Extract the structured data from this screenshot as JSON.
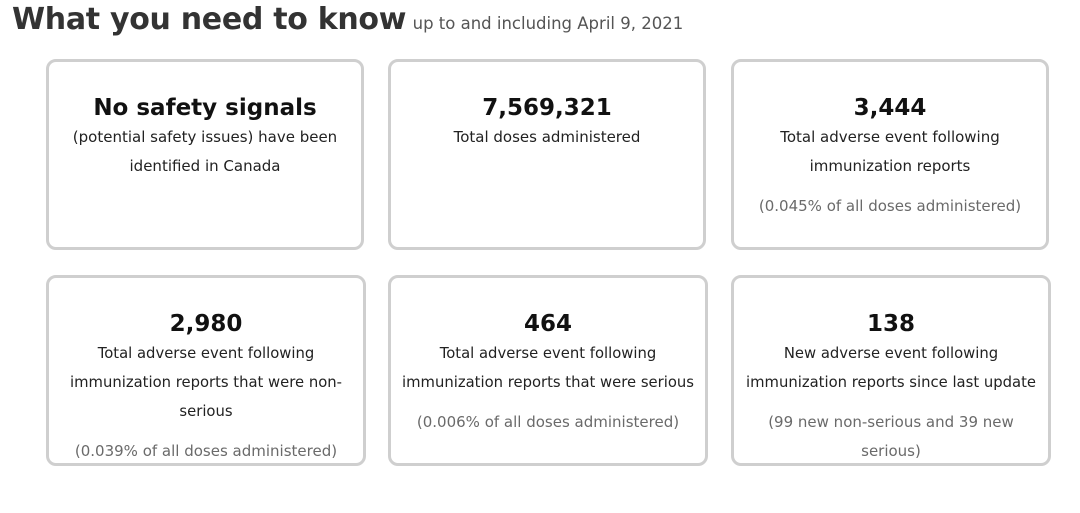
{
  "header": {
    "title": "What you need to know",
    "subtitle": "up to and including April 9, 2021"
  },
  "cards": [
    {
      "headline": "No safety signals",
      "description": "(potential safety issues) have been identified in Canada",
      "note": ""
    },
    {
      "headline": "7,569,321",
      "description": "Total doses administered",
      "note": ""
    },
    {
      "headline": "3,444",
      "description": "Total adverse event following immunization reports",
      "note": "(0.045% of all doses administered)"
    },
    {
      "headline": "2,980",
      "description": "Total adverse event following immunization reports that were non-serious",
      "note": "(0.039% of all doses administered)"
    },
    {
      "headline": "464",
      "description": "Total adverse event following immunization reports that were serious",
      "note": "(0.006% of all doses administered)"
    },
    {
      "headline": "138",
      "description": "New adverse event following immunization reports since last update",
      "note": "(99 new non-serious and 39 new serious)"
    }
  ],
  "colors": {
    "card_border": "#cfcfcf",
    "headline": "#111111",
    "note_text": "#6a6a6a"
  }
}
